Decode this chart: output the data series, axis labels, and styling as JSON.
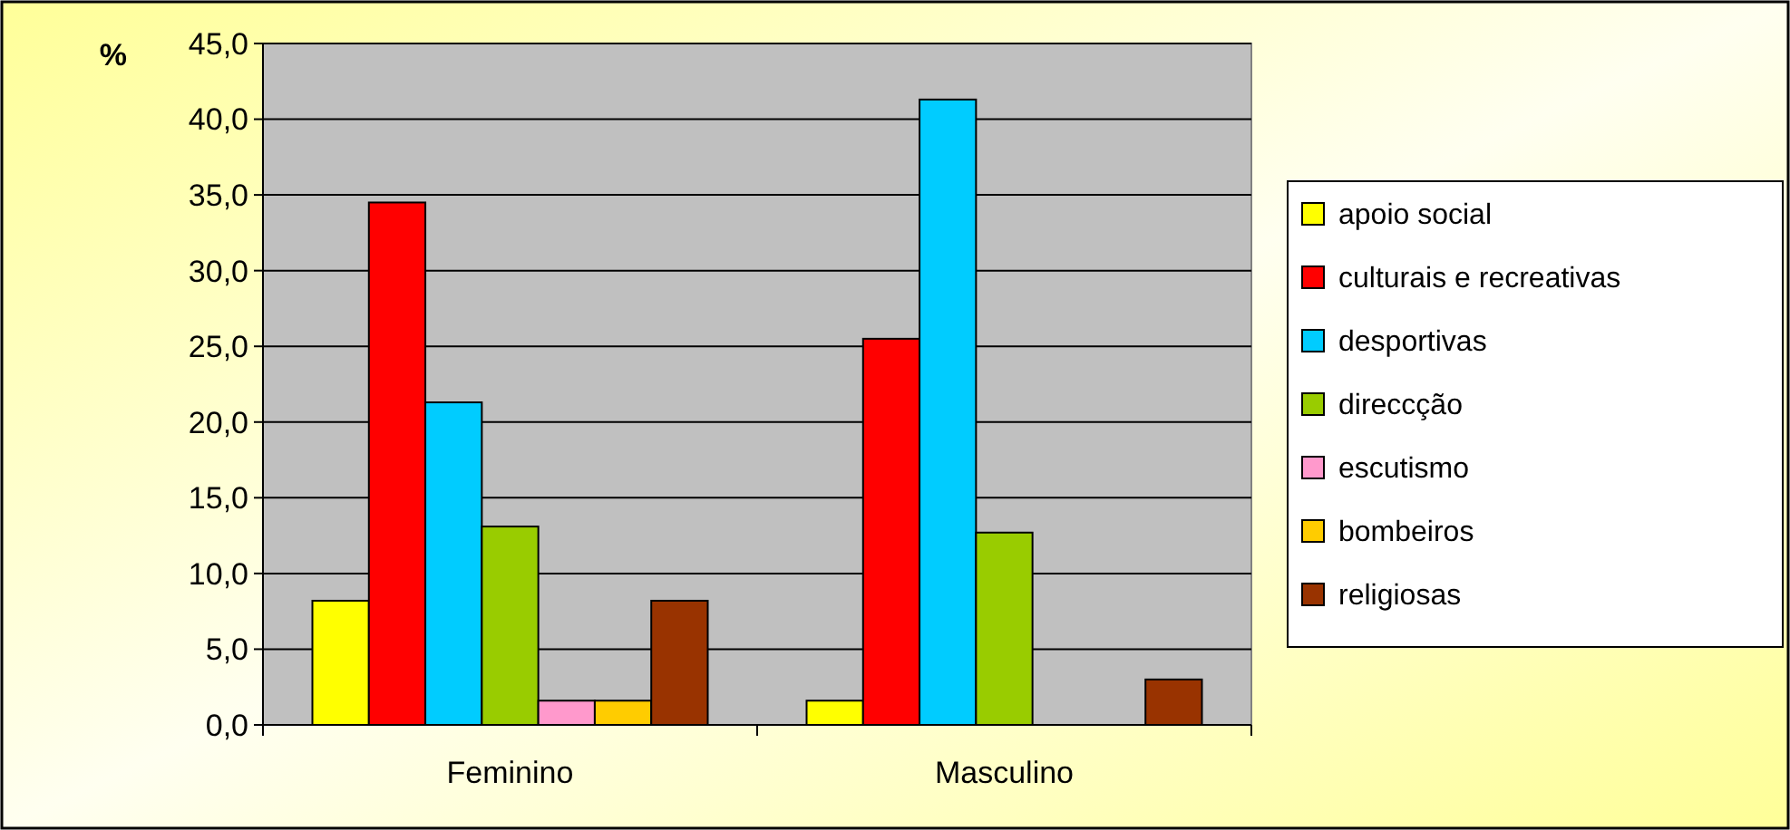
{
  "chart_data": {
    "type": "bar",
    "ylabel": "%",
    "categories": [
      "Feminino",
      "Masculino"
    ],
    "series": [
      {
        "name": "apoio social",
        "color": "#ffff00",
        "values": [
          8.2,
          1.6
        ]
      },
      {
        "name": "culturais e recreativas",
        "color": "#ff0000",
        "values": [
          34.5,
          25.5
        ]
      },
      {
        "name": "desportivas",
        "color": "#00ccff",
        "values": [
          21.3,
          41.3
        ]
      },
      {
        "name": "direccção",
        "color": "#99cc00",
        "values": [
          13.1,
          12.7
        ]
      },
      {
        "name": "escutismo",
        "color": "#ff99cc",
        "values": [
          1.6,
          0
        ]
      },
      {
        "name": "bombeiros",
        "color": "#ffcc00",
        "values": [
          1.6,
          0
        ]
      },
      {
        "name": "religiosas",
        "color": "#993300",
        "values": [
          8.2,
          3.0
        ]
      }
    ],
    "ylim": [
      0,
      45
    ],
    "yticks": [
      {
        "value": 0,
        "label": "0,0"
      },
      {
        "value": 5,
        "label": "5,0"
      },
      {
        "value": 10,
        "label": "10,0"
      },
      {
        "value": 15,
        "label": "15,0"
      },
      {
        "value": 20,
        "label": "20,0"
      },
      {
        "value": 25,
        "label": "25,0"
      },
      {
        "value": 30,
        "label": "30,0"
      },
      {
        "value": 35,
        "label": "35,0"
      },
      {
        "value": 40,
        "label": "40,0"
      },
      {
        "value": 45,
        "label": "45,0"
      }
    ],
    "grid": "y",
    "legend": "right"
  }
}
